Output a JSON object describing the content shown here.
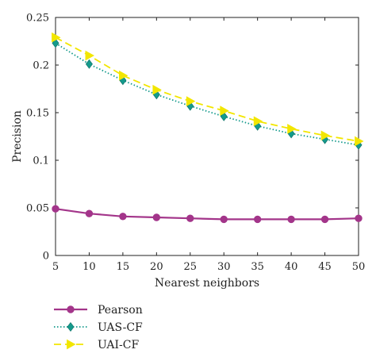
{
  "chart_data": {
    "type": "line",
    "xlabel": "Nearest neighbors",
    "ylabel": "Precision",
    "x": [
      5,
      10,
      15,
      20,
      25,
      30,
      35,
      40,
      45,
      50
    ],
    "xlim": [
      5,
      50
    ],
    "ylim": [
      0,
      0.25
    ],
    "x_ticks": [
      "5",
      "10",
      "15",
      "20",
      "25",
      "30",
      "35",
      "40",
      "45",
      "50"
    ],
    "y_ticks": [
      "0",
      "0.05",
      "0.1",
      "0.15",
      "0.2",
      "0.25"
    ],
    "y_tick_values": [
      0,
      0.05,
      0.1,
      0.15,
      0.2,
      0.25
    ],
    "grid": false,
    "legend_position": "bottom-left, below plot",
    "series": [
      {
        "name": "Pearson",
        "color": "#a3358a",
        "line_style": "solid",
        "marker": "circle",
        "values": [
          0.049,
          0.044,
          0.041,
          0.04,
          0.039,
          0.038,
          0.038,
          0.038,
          0.038,
          0.039
        ]
      },
      {
        "name": "UAS-CF",
        "color": "#149a8c",
        "line_style": "dotted",
        "marker": "diamond",
        "values": [
          0.223,
          0.201,
          0.184,
          0.169,
          0.157,
          0.146,
          0.136,
          0.128,
          0.122,
          0.116
        ]
      },
      {
        "name": "UAI-CF",
        "color": "#f2e600",
        "line_style": "dashed",
        "marker": "triangle-right",
        "values": [
          0.229,
          0.21,
          0.189,
          0.174,
          0.162,
          0.152,
          0.141,
          0.133,
          0.126,
          0.12
        ]
      }
    ]
  }
}
